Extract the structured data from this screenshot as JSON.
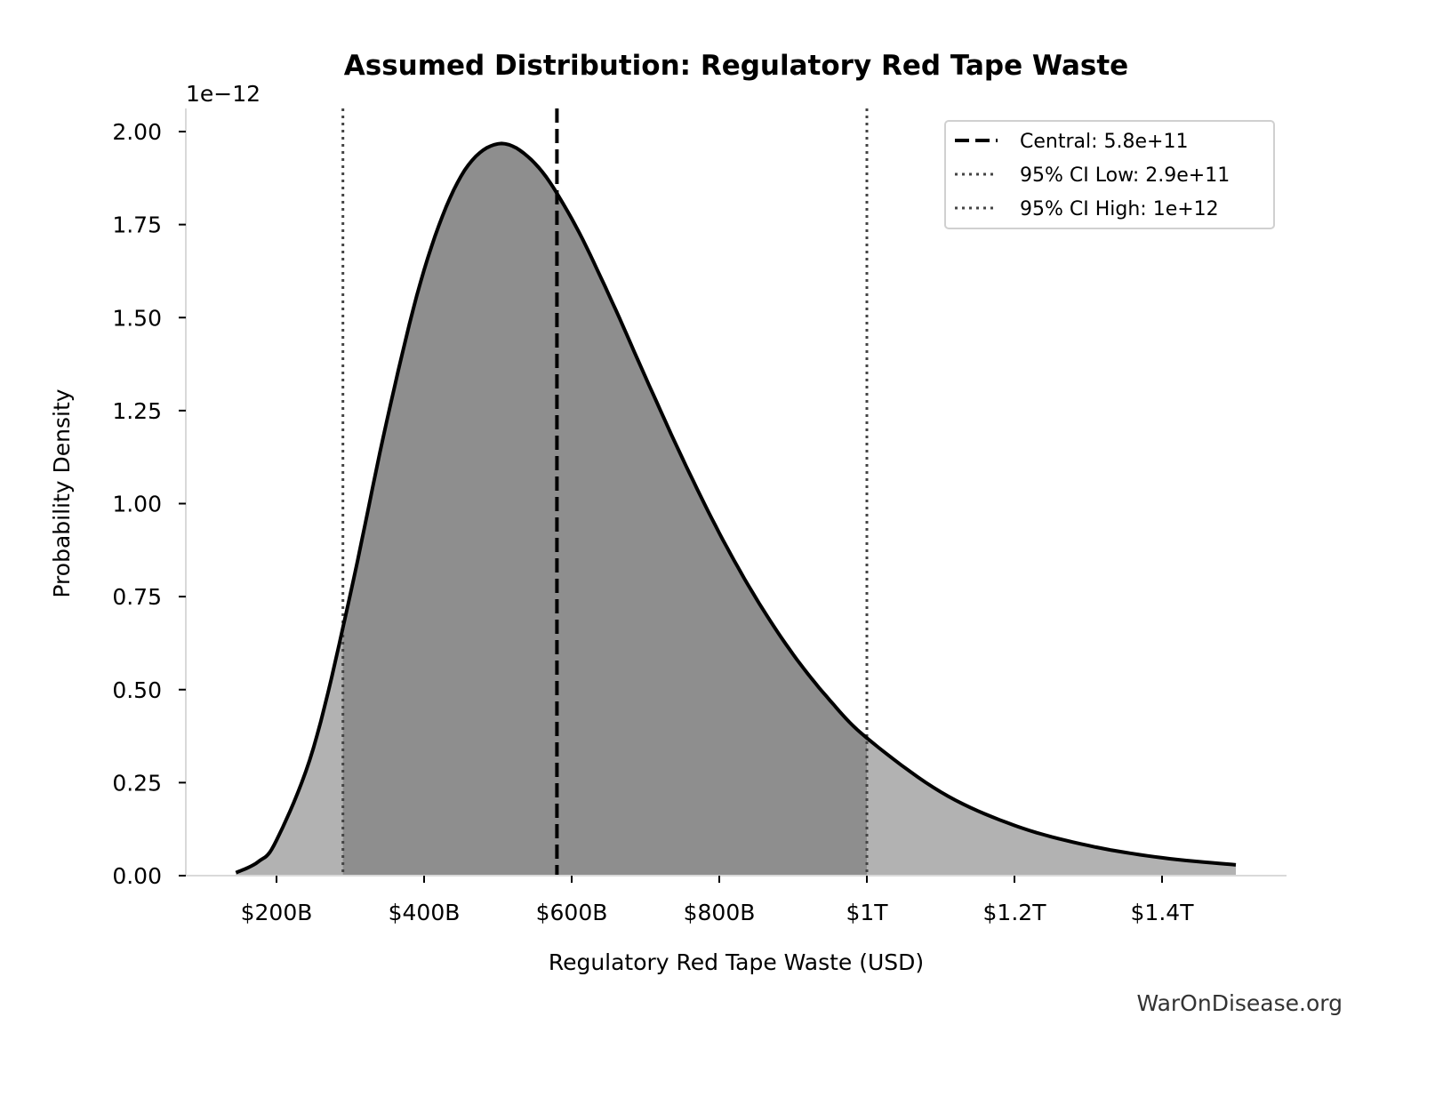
{
  "chart_data": {
    "type": "area",
    "title": "Assumed Distribution: Regulatory Red Tape Waste",
    "xlabel": "Regulatory Red Tape Waste (USD)",
    "ylabel": "Probability Density",
    "y_offset_label": "1e−12",
    "xlim": [
      145000000000.0,
      1500000000000.0
    ],
    "ylim": [
      0,
      2.05e-12
    ],
    "x_ticks": [
      200000000000.0,
      400000000000.0,
      600000000000.0,
      800000000000.0,
      1000000000000.0,
      1200000000000.0,
      1400000000000.0
    ],
    "x_tick_labels": [
      "$200B",
      "$400B",
      "$600B",
      "$800B",
      "$1T",
      "$1.2T",
      "$1.4T"
    ],
    "y_ticks": [
      0,
      0.25,
      0.5,
      0.75,
      1.0,
      1.25,
      1.5,
      1.75,
      2.0
    ],
    "y_tick_labels": [
      "0.00",
      "0.25",
      "0.50",
      "0.75",
      "1.00",
      "1.25",
      "1.50",
      "1.75",
      "2.00"
    ],
    "y_unit": "1e-12",
    "grid": false,
    "legend_position": "top-right",
    "series": [
      {
        "x": [
          145000000000.0,
          175000000000.0,
          200000000000.0,
          250000000000.0,
          300000000000.0,
          350000000000.0,
          400000000000.0,
          450000000000.0,
          500000000000.0,
          550000000000.0,
          600000000000.0,
          650000000000.0,
          700000000000.0,
          750000000000.0,
          800000000000.0,
          850000000000.0,
          900000000000.0,
          950000000000.0,
          1000000000000.0,
          1100000000000.0,
          1200000000000.0,
          1300000000000.0,
          1400000000000.0,
          1500000000000.0
        ],
        "y": [
          0.008,
          0.037,
          0.095,
          0.343,
          0.756,
          1.227,
          1.628,
          1.88,
          1.967,
          1.915,
          1.766,
          1.563,
          1.34,
          1.122,
          0.921,
          0.745,
          0.595,
          0.471,
          0.37,
          0.225,
          0.135,
          0.081,
          0.048,
          0.029
        ]
      }
    ],
    "shaded_interval": [
      290000000000.0,
      1000000000000.0
    ],
    "reference_lines": [
      {
        "label": "Central: 5.8e+11",
        "x": 580000000000.0,
        "style": "dashed",
        "color": "#000000"
      },
      {
        "label": "95% CI Low: 2.9e+11",
        "x": 290000000000.0,
        "style": "dotted",
        "color": "#444444"
      },
      {
        "label": "95% CI High: 1e+12",
        "x": 1000000000000.0,
        "style": "dotted",
        "color": "#444444"
      }
    ],
    "colors": {
      "curve": "#000000",
      "fill_outer": "#b2b2b2",
      "fill_ci": "#8e8e8e",
      "spine": "#d9d9d9"
    }
  },
  "watermark": "WarOnDisease.org"
}
